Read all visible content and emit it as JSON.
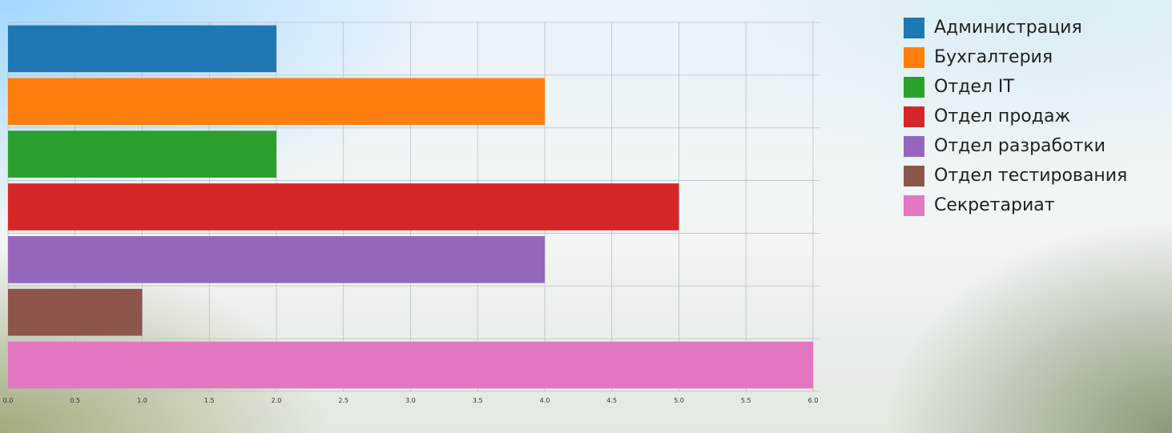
{
  "chart_data": {
    "type": "bar",
    "orientation": "horizontal",
    "categories": [
      "Администрация",
      "Бухгалтерия",
      "Отдел IT",
      "Отдел продаж",
      "Отдел разработки",
      "Отдел тестирования",
      "Секретариат"
    ],
    "values": [
      2,
      4,
      2,
      5,
      4,
      1,
      6
    ],
    "colors": [
      "#1f77b4",
      "#ff7f0e",
      "#2ca02c",
      "#d62728",
      "#9467bd",
      "#8c564b",
      "#e377c2"
    ],
    "xlim": [
      0,
      6
    ],
    "x_ticks": [
      "0.0",
      "0.5",
      "1.0",
      "1.5",
      "2.0",
      "2.5",
      "3.0",
      "3.5",
      "4.0",
      "4.5",
      "5.0",
      "5.5",
      "6.0"
    ],
    "grid": true,
    "legend_position": "top-right",
    "title": "",
    "xlabel": "",
    "ylabel": ""
  },
  "legend": {
    "items": [
      {
        "label": "Администрация",
        "color": "#1f77b4"
      },
      {
        "label": "Бухгалтерия",
        "color": "#ff7f0e"
      },
      {
        "label": "Отдел IT",
        "color": "#2ca02c"
      },
      {
        "label": "Отдел продаж",
        "color": "#d62728"
      },
      {
        "label": "Отдел разработки",
        "color": "#9467bd"
      },
      {
        "label": "Отдел тестирования",
        "color": "#8c564b"
      },
      {
        "label": "Секретариат",
        "color": "#e377c2"
      }
    ]
  }
}
